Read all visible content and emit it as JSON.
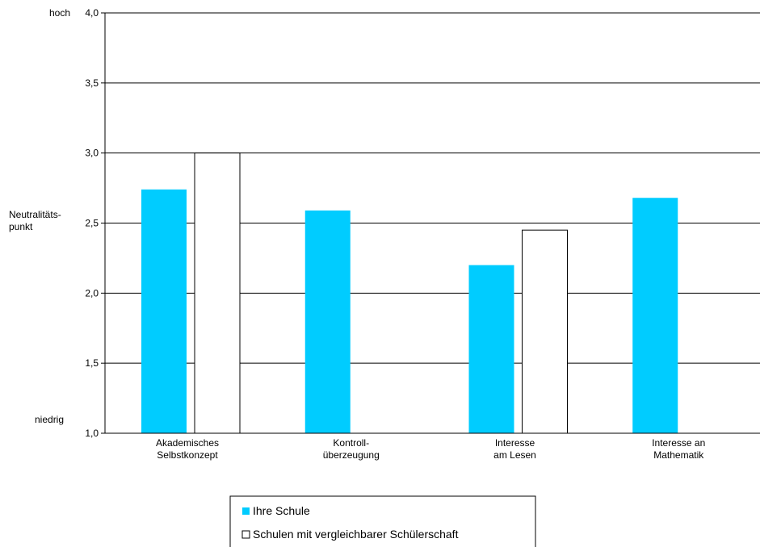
{
  "chart_data": {
    "type": "bar",
    "title": "",
    "xlabel": "",
    "ylabel": "",
    "ylim": [
      1.0,
      4.0
    ],
    "yticks": [
      "1,0",
      "1,5",
      "2,0",
      "2,5",
      "3,0",
      "3,5",
      "4,0"
    ],
    "ytick_values": [
      1.0,
      1.5,
      2.0,
      2.5,
      3.0,
      3.5,
      4.0
    ],
    "grid": true,
    "side_labels": {
      "top": "hoch",
      "middle": [
        "Neutralitäts-",
        "punkt"
      ],
      "bottom": "niedrig"
    },
    "categories": [
      [
        "Akademisches",
        "Selbstkonzept"
      ],
      [
        "Kontroll-",
        "überzeugung"
      ],
      [
        "Interesse",
        "am Lesen"
      ],
      [
        "Interesse an",
        "Mathematik"
      ]
    ],
    "series": [
      {
        "name": "Ihre Schule",
        "color": "#00ccff",
        "values": [
          2.74,
          2.59,
          2.2,
          2.68
        ]
      },
      {
        "name": "Schulen mit vergleichbarer Schülerschaft",
        "color": "#ffffff",
        "values": [
          3.0,
          null,
          2.45,
          null
        ]
      }
    ],
    "legend_position": "bottom-center"
  }
}
